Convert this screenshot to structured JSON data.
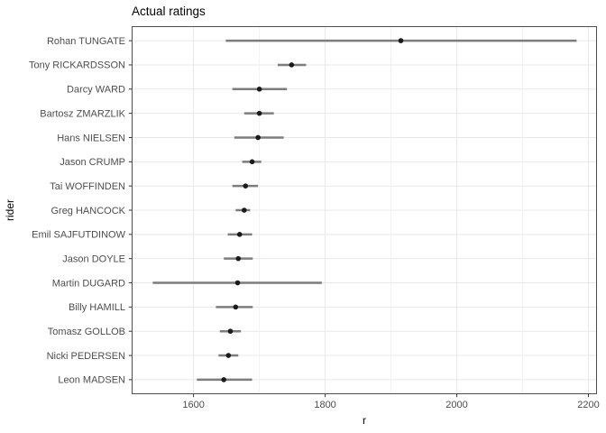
{
  "chart_data": {
    "type": "scatter",
    "subtype": "horizontal-dot-plot-with-error-bars",
    "title": "Actual ratings",
    "xlabel": "r",
    "ylabel": "rider",
    "xlim": [
      1506,
      2213
    ],
    "x_major_ticks": [
      1600,
      1800,
      2000,
      2200
    ],
    "x_minor_ticks": [
      1700,
      1900,
      2100
    ],
    "legend": "none",
    "grid": {
      "horizontal": "per-category-major",
      "vertical": "major-and-minor"
    },
    "categories": [
      "Rohan TUNGATE",
      "Tony RICKARDSSON",
      "Darcy WARD",
      "Bartosz ZMARZLIK",
      "Hans NIELSEN",
      "Jason CRUMP",
      "Tai WOFFINDEN",
      "Greg HANCOCK",
      "Emil SAJFUTDINOW",
      "Jason DOYLE",
      "Martin DUGARD",
      "Billy HAMILL",
      "Tomasz GOLLOB",
      "Nicki PEDERSEN",
      "Leon MADSEN"
    ],
    "series": [
      {
        "name": "rating",
        "values": [
          1915,
          1749,
          1700,
          1700,
          1698,
          1689,
          1679,
          1677,
          1670,
          1668,
          1667,
          1664,
          1656,
          1653,
          1646
        ],
        "ci_low": [
          1649,
          1728,
          1659,
          1677,
          1662,
          1674,
          1659,
          1664,
          1652,
          1646,
          1538,
          1634,
          1640,
          1638,
          1605
        ],
        "ci_high": [
          2182,
          1771,
          1742,
          1722,
          1737,
          1703,
          1698,
          1686,
          1689,
          1690,
          1795,
          1690,
          1672,
          1668,
          1689
        ]
      }
    ],
    "colors": {
      "point": "#1a1a1a",
      "error_bar": "#7d7d7d",
      "grid_major": "#e8e8e8",
      "grid_minor": "#f2f2f2",
      "panel_border": "#4f4f4f",
      "tick_mark": "#333333",
      "tick_label": "#4d4d4d",
      "axis_title": "#000000",
      "title": "#000000",
      "background": "#ffffff"
    }
  }
}
